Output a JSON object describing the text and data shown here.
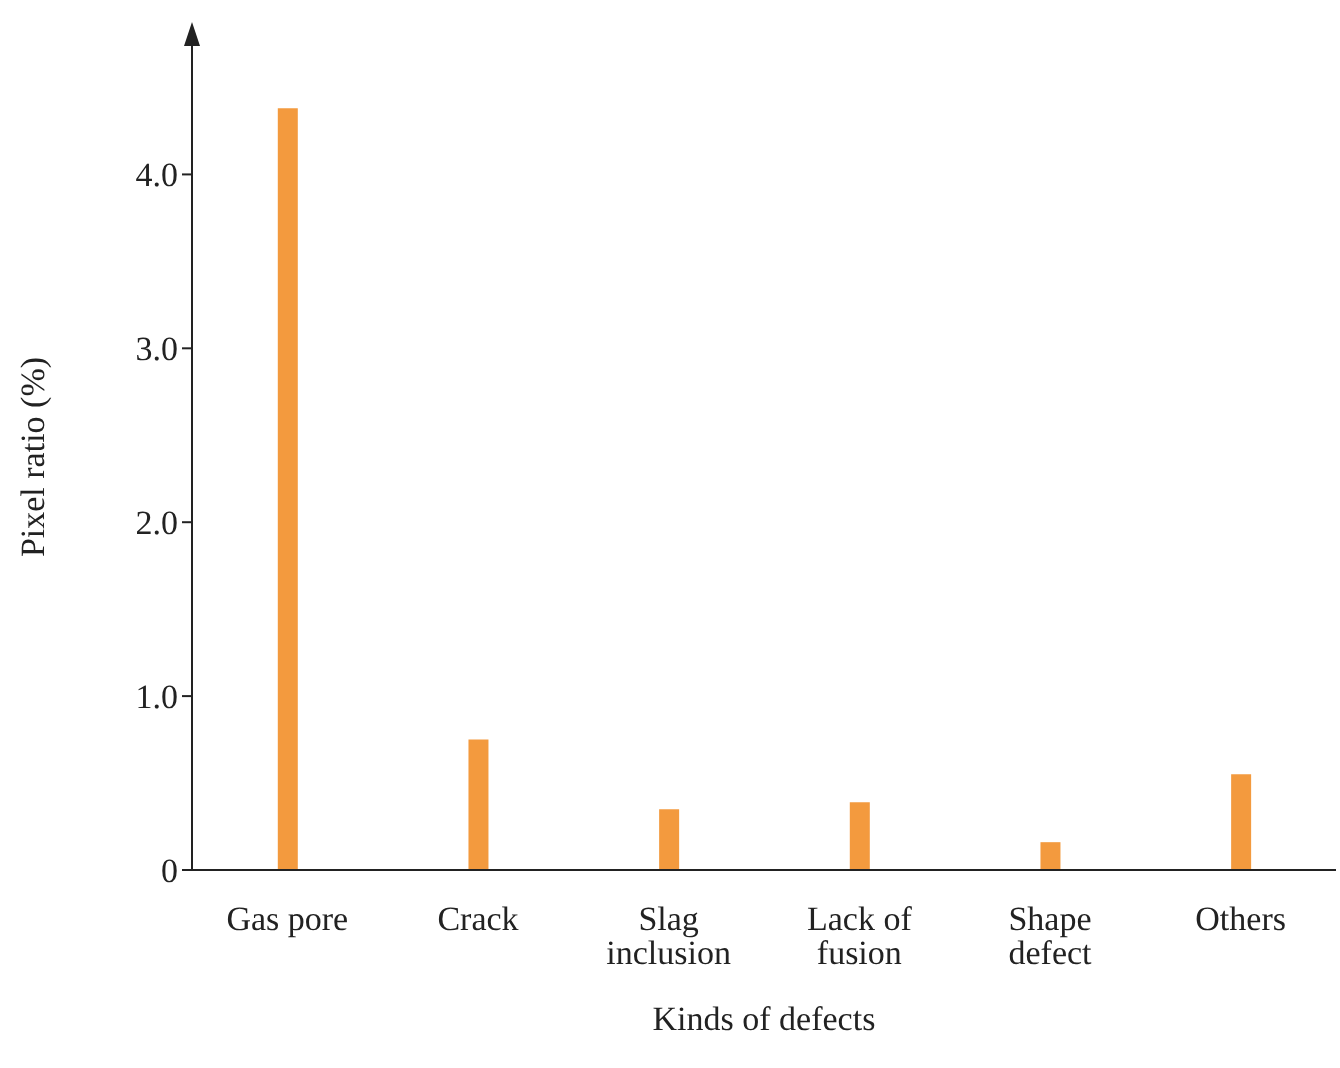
{
  "chart_data": {
    "type": "bar",
    "xlabel": "Kinds of defects",
    "ylabel": "Pixel ratio (%)",
    "categories": [
      "Gas pore",
      "Crack",
      "Slag inclusion",
      "Lack of fusion",
      "Shape defect",
      "Others"
    ],
    "values": [
      4.38,
      0.75,
      0.35,
      0.39,
      0.16,
      0.55
    ],
    "color": "#f39a3e",
    "ylim": [
      0,
      4.75
    ],
    "yticks": [
      0,
      {
        "value": 1,
        "label": "1.0"
      },
      {
        "value": 2,
        "label": "2.0"
      },
      {
        "value": 3,
        "label": "3.0"
      },
      {
        "value": 4,
        "label": "4.0"
      }
    ],
    "grid": false
  }
}
